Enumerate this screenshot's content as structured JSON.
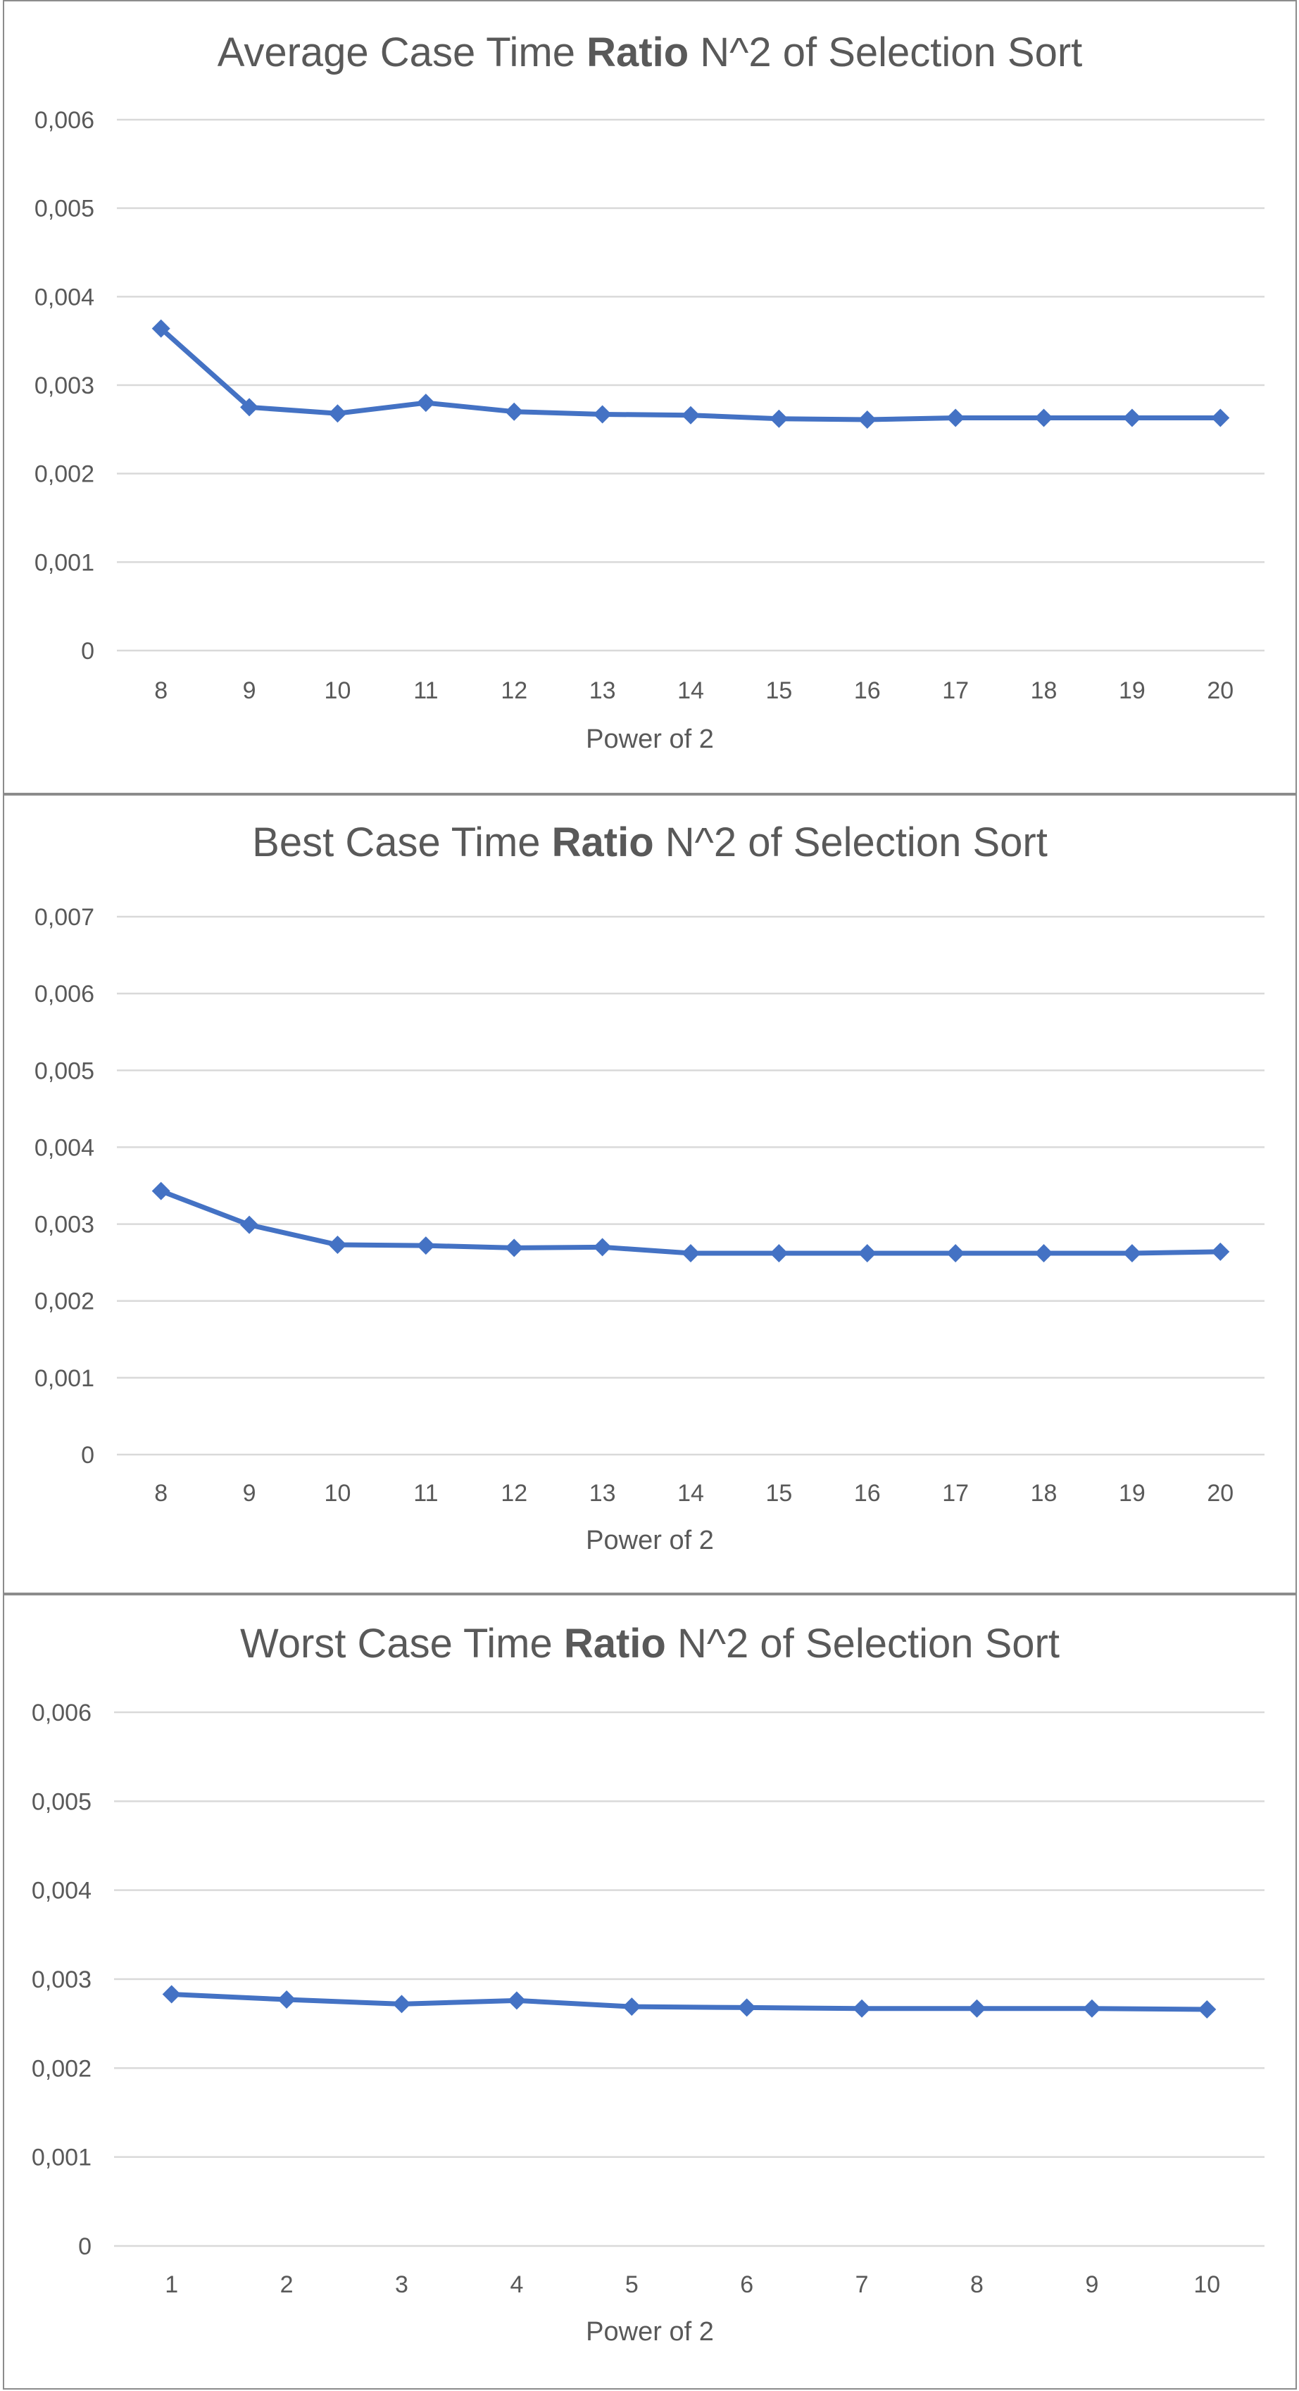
{
  "chart_data": [
    {
      "type": "line",
      "title_parts": [
        {
          "text": "Average Case Time ",
          "bold": false
        },
        {
          "text": "Ratio",
          "bold": true
        },
        {
          "text": " N^2 of Selection Sort",
          "bold": false
        }
      ],
      "xlabel": "Power of 2",
      "ylabel": "",
      "ylim": [
        0,
        0.006
      ],
      "yticks": [
        "0",
        "0,001",
        "0,002",
        "0,003",
        "0,004",
        "0,005",
        "0,006"
      ],
      "x": [
        "8",
        "9",
        "10",
        "11",
        "12",
        "13",
        "14",
        "15",
        "16",
        "17",
        "18",
        "19",
        "20"
      ],
      "series": [
        {
          "values": [
            0.00364,
            0.00275,
            0.00268,
            0.0028,
            0.0027,
            0.00267,
            0.00266,
            0.00262,
            0.00261,
            0.00263,
            0.00263,
            0.00263,
            0.00263
          ]
        }
      ],
      "grid": true,
      "legend": "none"
    },
    {
      "type": "line",
      "title_parts": [
        {
          "text": "Best Case Time ",
          "bold": false
        },
        {
          "text": "Ratio",
          "bold": true
        },
        {
          "text": " N^2 of Selection Sort",
          "bold": false
        }
      ],
      "xlabel": "Power of 2",
      "ylabel": "",
      "ylim": [
        0,
        0.007
      ],
      "yticks": [
        "0",
        "0,001",
        "0,002",
        "0,003",
        "0,004",
        "0,005",
        "0,006",
        "0,007"
      ],
      "x": [
        "8",
        "9",
        "10",
        "11",
        "12",
        "13",
        "14",
        "15",
        "16",
        "17",
        "18",
        "19",
        "20"
      ],
      "series": [
        {
          "values": [
            0.00343,
            0.00299,
            0.00273,
            0.00272,
            0.00269,
            0.0027,
            0.00262,
            0.00262,
            0.00262,
            0.00262,
            0.00262,
            0.00262,
            0.00264
          ]
        }
      ],
      "grid": true,
      "legend": "none"
    },
    {
      "type": "line",
      "title_parts": [
        {
          "text": "Worst Case Time ",
          "bold": false
        },
        {
          "text": "Ratio",
          "bold": true
        },
        {
          "text": " N^2 of Selection Sort",
          "bold": false
        }
      ],
      "xlabel": "Power of 2",
      "ylabel": "",
      "ylim": [
        0,
        0.006
      ],
      "yticks": [
        "0",
        "0,001",
        "0,002",
        "0,003",
        "0,004",
        "0,005",
        "0,006"
      ],
      "x": [
        "1",
        "2",
        "3",
        "4",
        "5",
        "6",
        "7",
        "8",
        "9",
        "10"
      ],
      "series": [
        {
          "values": [
            0.00283,
            0.00277,
            0.00272,
            0.00276,
            0.00269,
            0.00268,
            0.00267,
            0.00267,
            0.00267,
            0.00266
          ]
        }
      ],
      "grid": true,
      "legend": "none"
    }
  ]
}
